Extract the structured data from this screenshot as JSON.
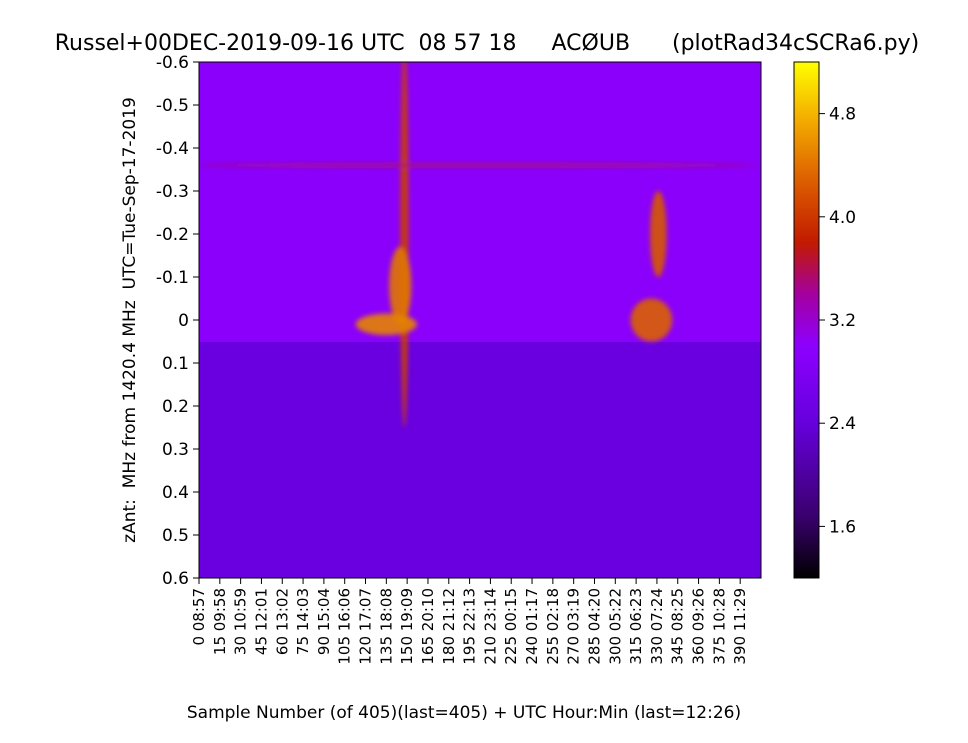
{
  "chart_data": {
    "type": "heatmap",
    "title": "Russel+00DEC-2019-09-16 UTC  08 57 18     ACØUB      (plotRad34cSCRa6.py)",
    "xlabel": "Sample Number (of 405)(last=405) + UTC Hour:Min (last=12:26)",
    "ylabel": "zAnt:  MHz from 1420.4 MHz  UTC=Tue-Sep-17-2019",
    "x_range": [
      0,
      405
    ],
    "y_range": [
      -0.6,
      0.6
    ],
    "x_ticks": [
      {
        "value": 0,
        "label": "0 08:57"
      },
      {
        "value": 15,
        "label": "15 09:58"
      },
      {
        "value": 30,
        "label": "30 10:59"
      },
      {
        "value": 45,
        "label": "45 12:01"
      },
      {
        "value": 60,
        "label": "60 13:02"
      },
      {
        "value": 75,
        "label": "75 14:03"
      },
      {
        "value": 90,
        "label": "90 15:04"
      },
      {
        "value": 105,
        "label": "105 16:06"
      },
      {
        "value": 120,
        "label": "120 17:07"
      },
      {
        "value": 135,
        "label": "135 18:08"
      },
      {
        "value": 150,
        "label": "150 19:09"
      },
      {
        "value": 165,
        "label": "165 20:10"
      },
      {
        "value": 180,
        "label": "180 21:12"
      },
      {
        "value": 195,
        "label": "195 22:13"
      },
      {
        "value": 210,
        "label": "210 23:14"
      },
      {
        "value": 225,
        "label": "225 00:15"
      },
      {
        "value": 240,
        "label": "240 01:17"
      },
      {
        "value": 255,
        "label": "255 02:18"
      },
      {
        "value": 270,
        "label": "270 03:19"
      },
      {
        "value": 285,
        "label": "285 04:20"
      },
      {
        "value": 300,
        "label": "300 05:22"
      },
      {
        "value": 315,
        "label": "315 06:23"
      },
      {
        "value": 330,
        "label": "330 07:24"
      },
      {
        "value": 345,
        "label": "345 08:25"
      },
      {
        "value": 360,
        "label": "360 09:26"
      },
      {
        "value": 375,
        "label": "375 10:28"
      },
      {
        "value": 390,
        "label": "390 11:29"
      }
    ],
    "y_ticks": [
      {
        "value": -0.6,
        "label": "-0.6"
      },
      {
        "value": -0.5,
        "label": "-0.5"
      },
      {
        "value": -0.4,
        "label": "-0.4"
      },
      {
        "value": -0.3,
        "label": "-0.3"
      },
      {
        "value": -0.2,
        "label": "-0.2"
      },
      {
        "value": -0.1,
        "label": "-0.1"
      },
      {
        "value": 0.0,
        "label": "0"
      },
      {
        "value": 0.1,
        "label": "0.1"
      },
      {
        "value": 0.2,
        "label": "0.2"
      },
      {
        "value": 0.3,
        "label": "0.3"
      },
      {
        "value": 0.4,
        "label": "0.4"
      },
      {
        "value": 0.5,
        "label": "0.5"
      },
      {
        "value": 0.6,
        "label": "0.6"
      }
    ],
    "colorbar": {
      "colormap": "gnuplot",
      "range": [
        1.2,
        5.2
      ],
      "ticks": [
        {
          "value": 1.6,
          "label": "1.6"
        },
        {
          "value": 2.4,
          "label": "2.4"
        },
        {
          "value": 3.2,
          "label": "3.2"
        },
        {
          "value": 4.0,
          "label": "4.0"
        },
        {
          "value": 4.8,
          "label": "4.8"
        }
      ]
    },
    "background_level": {
      "upper_half": 2.5,
      "lower_half": 2.05
    },
    "features": [
      {
        "x_center": 148,
        "y_center": -0.2,
        "x_halfwidth": 3,
        "y_halfwidth": 0.45,
        "peak": 3.7
      },
      {
        "x_center": 145,
        "y_center": -0.08,
        "x_halfwidth": 8,
        "y_halfwidth": 0.09,
        "peak": 4.3
      },
      {
        "x_center": 135,
        "y_center": 0.01,
        "x_halfwidth": 22,
        "y_halfwidth": 0.025,
        "peak": 4.4
      },
      {
        "x_center": 331,
        "y_center": -0.2,
        "x_halfwidth": 6,
        "y_halfwidth": 0.1,
        "peak": 4.0
      },
      {
        "x_center": 326,
        "y_center": 0.0,
        "x_halfwidth": 15,
        "y_halfwidth": 0.05,
        "peak": 4.1
      },
      {
        "x_center": 200,
        "y_center": -0.36,
        "x_halfwidth": 202,
        "y_halfwidth": 0.004,
        "peak": 2.95
      }
    ]
  }
}
